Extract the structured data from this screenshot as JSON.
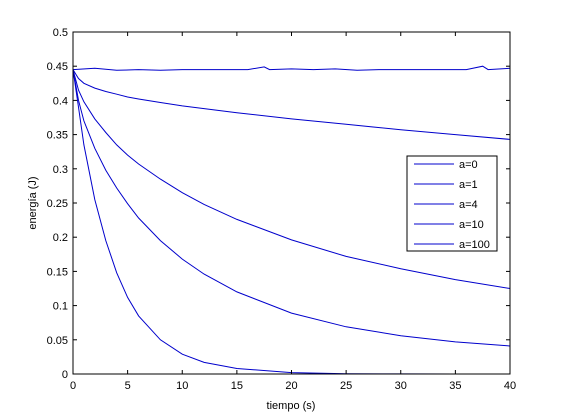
{
  "chart_data": {
    "type": "line",
    "title": "",
    "xlabel": "tiempo (s)",
    "ylabel": "energía (J)",
    "xlim": [
      0,
      40
    ],
    "ylim": [
      0,
      0.5
    ],
    "x_ticks": [
      "0",
      "5",
      "10",
      "15",
      "20",
      "25",
      "30",
      "35",
      "40"
    ],
    "y_ticks": [
      "0",
      "0.05",
      "0.1",
      "0.15",
      "0.2",
      "0.25",
      "0.3",
      "0.35",
      "0.4",
      "0.45",
      "0.5"
    ],
    "grid": false,
    "legend_position": "right",
    "line_color": "#0000cc",
    "series": [
      {
        "name": "a=0",
        "x": [
          0,
          2,
          4,
          6,
          8,
          10,
          12,
          14,
          16,
          17.5,
          18,
          20,
          22,
          24,
          26,
          28,
          30,
          32,
          34,
          36,
          37.5,
          38,
          40
        ],
        "y": [
          0.445,
          0.447,
          0.444,
          0.445,
          0.444,
          0.445,
          0.445,
          0.445,
          0.445,
          0.449,
          0.445,
          0.446,
          0.445,
          0.446,
          0.444,
          0.445,
          0.445,
          0.445,
          0.445,
          0.445,
          0.45,
          0.445,
          0.447
        ]
      },
      {
        "name": "a=1",
        "x": [
          0,
          0.5,
          1,
          2,
          3,
          4,
          5,
          6,
          8,
          10,
          12,
          15,
          20,
          25,
          30,
          35,
          40
        ],
        "y": [
          0.445,
          0.432,
          0.425,
          0.418,
          0.413,
          0.409,
          0.405,
          0.402,
          0.397,
          0.392,
          0.388,
          0.382,
          0.373,
          0.365,
          0.357,
          0.35,
          0.343
        ]
      },
      {
        "name": "a=4",
        "x": [
          0,
          0.5,
          1,
          2,
          3,
          4,
          5,
          6,
          8,
          10,
          12,
          15,
          20,
          25,
          30,
          35,
          40
        ],
        "y": [
          0.445,
          0.415,
          0.398,
          0.373,
          0.353,
          0.335,
          0.32,
          0.307,
          0.285,
          0.265,
          0.248,
          0.226,
          0.196,
          0.172,
          0.154,
          0.138,
          0.125
        ]
      },
      {
        "name": "a=10",
        "x": [
          0,
          0.5,
          1,
          2,
          3,
          4,
          5,
          6,
          8,
          10,
          12,
          15,
          20,
          25,
          30,
          35,
          40
        ],
        "y": [
          0.445,
          0.4,
          0.37,
          0.33,
          0.298,
          0.272,
          0.249,
          0.228,
          0.195,
          0.168,
          0.146,
          0.12,
          0.089,
          0.069,
          0.056,
          0.047,
          0.041
        ]
      },
      {
        "name": "a=100",
        "x": [
          0,
          0.5,
          1,
          2,
          3,
          4,
          5,
          6,
          8,
          10,
          12,
          15,
          20,
          25,
          30,
          35,
          40
        ],
        "y": [
          0.445,
          0.39,
          0.335,
          0.255,
          0.195,
          0.148,
          0.112,
          0.085,
          0.05,
          0.029,
          0.017,
          0.008,
          0.002,
          0.0005,
          0.0001,
          0,
          0
        ]
      }
    ]
  }
}
